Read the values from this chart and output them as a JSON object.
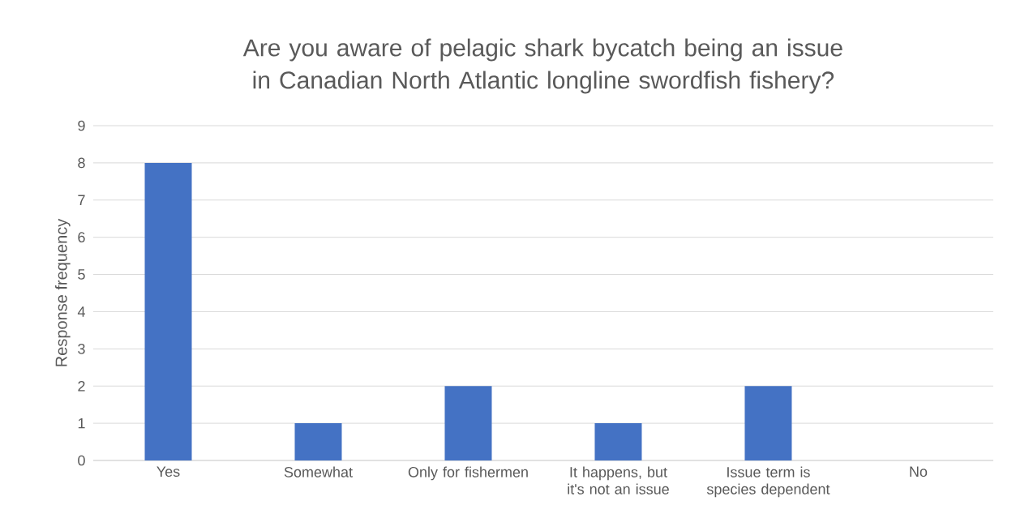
{
  "chart_data": {
    "type": "bar",
    "title": "Are you aware of pelagic shark bycatch being an issue in Canadian North Atlantic longline swordfish fishery?",
    "ylabel": "Response frequency",
    "categories": [
      "Yes",
      "Somewhat",
      "Only for fishermen",
      "It happens, but it's not an issue",
      "Issue term is species dependent",
      "No"
    ],
    "values": [
      8,
      1,
      2,
      1,
      2,
      0
    ],
    "color": "#4472c4",
    "ylim": [
      0,
      9
    ],
    "yticks": [
      0,
      1,
      2,
      3,
      4,
      5,
      6,
      7,
      8,
      9
    ],
    "grid": "y"
  }
}
